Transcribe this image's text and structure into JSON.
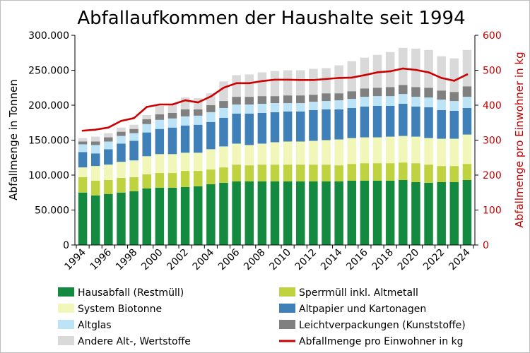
{
  "chart_data": {
    "type": "bar",
    "stacked": true,
    "title": "Abfallaufkommen der Haushalte seit 1994",
    "xlabel": "",
    "ylabel": "Abfallmenge in Tonnen",
    "y2label": "Abfallmenge pro Einwohner in kg",
    "categories": [
      1994,
      1995,
      1996,
      1997,
      1998,
      1999,
      2000,
      2001,
      2002,
      2003,
      2004,
      2005,
      2006,
      2007,
      2008,
      2009,
      2010,
      2011,
      2012,
      2013,
      2014,
      2015,
      2016,
      2017,
      2018,
      2019,
      2020,
      2021,
      2022,
      2023,
      2024
    ],
    "xtick_labels": [
      "1994",
      "1996",
      "1998",
      "2000",
      "2002",
      "2004",
      "2006",
      "2008",
      "2010",
      "2012",
      "2014",
      "2016",
      "2018",
      "2020",
      "2022",
      "2024"
    ],
    "ylim": [
      0,
      300000
    ],
    "yticks": [
      0,
      50000,
      100000,
      150000,
      200000,
      250000,
      300000
    ],
    "ytick_labels": [
      "0",
      "50.000",
      "100.000",
      "150.000",
      "200.000",
      "250.000",
      "300.000"
    ],
    "y2lim": [
      0,
      600
    ],
    "y2ticks": [
      0,
      100,
      200,
      300,
      400,
      500,
      600
    ],
    "y2tick_labels": [
      "0",
      "100",
      "200",
      "300",
      "400",
      "500",
      "600"
    ],
    "grid": false,
    "legend_placement": "bottom",
    "series": [
      {
        "name": "Hausabfall (Restmüll)",
        "color": "#138a3f",
        "values": [
          75000,
          71000,
          73000,
          75000,
          77000,
          81000,
          82000,
          82000,
          83000,
          84000,
          87000,
          89000,
          91000,
          91000,
          91000,
          91000,
          91000,
          91000,
          91000,
          91000,
          91000,
          92000,
          92000,
          92000,
          92000,
          93000,
          90000,
          89000,
          90000,
          90000,
          93000
        ]
      },
      {
        "name": "Sperrmüll inkl. Altmetall",
        "color": "#bfd23f",
        "values": [
          22000,
          21000,
          20000,
          21000,
          20000,
          20000,
          21000,
          21000,
          23000,
          22000,
          21000,
          22000,
          24000,
          23000,
          24000,
          24000,
          24000,
          24000,
          24000,
          24000,
          23000,
          24000,
          25000,
          25000,
          25000,
          25000,
          27000,
          26000,
          23000,
          23000,
          23000
        ]
      },
      {
        "name": "System Biotonne",
        "color": "#f0f7b8",
        "values": [
          14000,
          21000,
          22000,
          23000,
          24000,
          26000,
          27000,
          27000,
          26000,
          26000,
          29000,
          30000,
          30000,
          29000,
          30000,
          32000,
          33000,
          33000,
          34000,
          35000,
          37000,
          37000,
          37000,
          37000,
          38000,
          38000,
          38000,
          38000,
          39000,
          39000,
          42000
        ]
      },
      {
        "name": "Altpapier und Kartonagen",
        "color": "#3f80b9",
        "values": [
          22000,
          18000,
          22000,
          26000,
          28000,
          34000,
          36000,
          38000,
          39000,
          40000,
          39000,
          41000,
          43000,
          45000,
          44000,
          43000,
          43000,
          43000,
          44000,
          44000,
          43000,
          43000,
          44000,
          45000,
          44000,
          46000,
          43000,
          44000,
          41000,
          40000,
          38000
        ]
      },
      {
        "name": "Altglas",
        "color": "#bde3f6",
        "values": [
          11000,
          12000,
          11000,
          11000,
          11000,
          12000,
          13000,
          13000,
          13000,
          13000,
          14000,
          14000,
          13000,
          13000,
          13000,
          13000,
          12000,
          12000,
          12000,
          12000,
          13000,
          13000,
          14000,
          14000,
          14000,
          14000,
          14000,
          14000,
          15000,
          14000,
          16000
        ]
      },
      {
        "name": "Leichtverpackungen (Kunststoffe)",
        "color": "#808080",
        "values": [
          4000,
          5000,
          6000,
          6000,
          6000,
          7000,
          8000,
          8000,
          10000,
          9000,
          10000,
          10000,
          11000,
          11000,
          11000,
          10000,
          11000,
          11000,
          10000,
          11000,
          10000,
          11000,
          12000,
          12000,
          13000,
          13000,
          14000,
          14000,
          13000,
          13000,
          15000
        ]
      },
      {
        "name": "Andere Alt-, Wertstoffe",
        "color": "#d9d9d9",
        "values": [
          5000,
          7000,
          6000,
          6000,
          6000,
          6000,
          12000,
          13000,
          17000,
          16000,
          17000,
          28000,
          31000,
          32000,
          34000,
          36000,
          36000,
          36000,
          37000,
          36000,
          40000,
          43000,
          44000,
          47000,
          50000,
          53000,
          55000,
          54000,
          49000,
          48000,
          52000
        ]
      }
    ],
    "line_series": {
      "name": "Abfallmenge pro Einwohner in kg",
      "axis": "right",
      "color": "#cc0000",
      "values": [
        327,
        330,
        336,
        355,
        363,
        395,
        402,
        402,
        414,
        408,
        425,
        450,
        463,
        463,
        469,
        473,
        473,
        472,
        472,
        475,
        478,
        479,
        486,
        494,
        497,
        505,
        501,
        494,
        478,
        470,
        488
      ]
    }
  }
}
